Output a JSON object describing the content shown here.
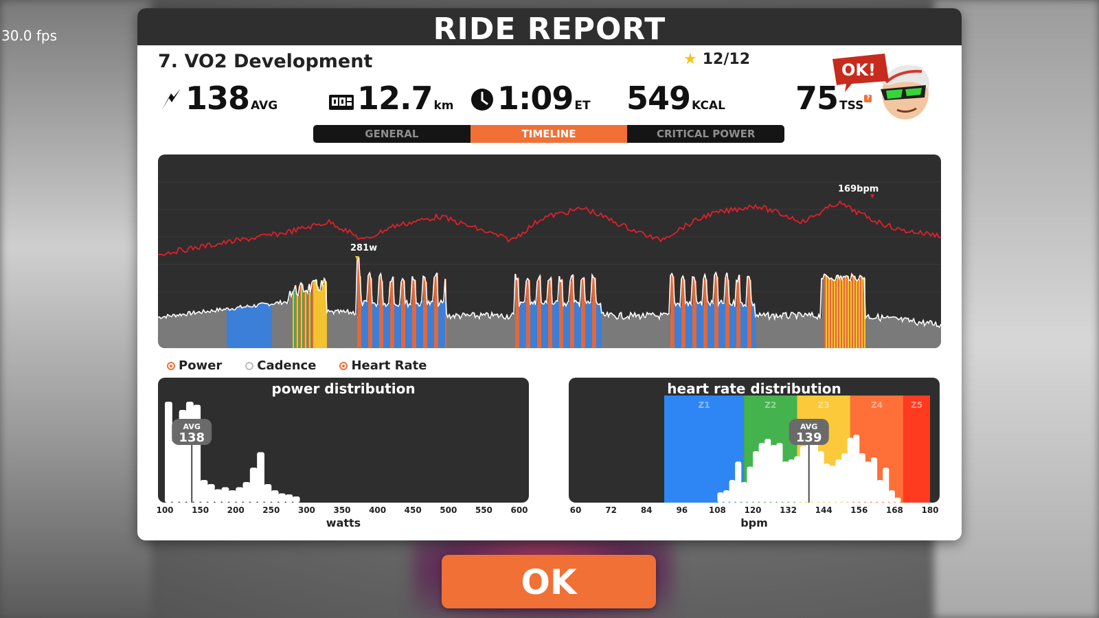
{
  "fps": "30.0 fps",
  "header": {
    "title": "RIDE REPORT"
  },
  "workout": {
    "name": "7. VO2 Development",
    "stars": "12/12"
  },
  "stats": {
    "power": {
      "value": "138",
      "unit": "AVG",
      "icon": "lightning-icon"
    },
    "distance": {
      "value": "12.7",
      "unit": "km",
      "icon": "odometer-icon"
    },
    "time": {
      "value": "1:09",
      "unit": "ET",
      "icon": "clock-icon"
    },
    "calories": {
      "value": "549",
      "unit": "KCAL"
    },
    "tss": {
      "value": "75",
      "unit": "TSS",
      "badge": "?"
    }
  },
  "mascot": {
    "bubble": "OK!"
  },
  "tabs": [
    {
      "label": "GENERAL",
      "active": false
    },
    {
      "label": "TIMELINE",
      "active": true
    },
    {
      "label": "CRITICAL POWER",
      "active": false
    }
  ],
  "timeline": {
    "power_peak_label": "281w",
    "hr_peak_label": "169bpm",
    "colors": {
      "power_line": "#ffffff",
      "hr_line": "#e0202a",
      "z1": "#3b7fd9",
      "z2": "#3cab4d",
      "z3": "#f2c230",
      "z4": "#e2683a",
      "z5": "#d8362b",
      "base": "#7a7a7a"
    }
  },
  "legend": [
    {
      "label": "Power",
      "on": true
    },
    {
      "label": "Cadence",
      "on": false
    },
    {
      "label": "Heart Rate",
      "on": true
    }
  ],
  "chart_data": [
    {
      "type": "bar",
      "title": "power distribution",
      "xlabel": "watts",
      "x_ticks": [
        "100",
        "150",
        "200",
        "250",
        "300",
        "350",
        "400",
        "450",
        "500",
        "550",
        "600"
      ],
      "xlim": [
        100,
        600
      ],
      "avg_label": "AVG",
      "avg": "138",
      "avg_value": 138,
      "x": [
        105,
        115,
        125,
        135,
        145,
        155,
        165,
        175,
        185,
        195,
        205,
        215,
        225,
        235,
        245,
        255,
        265,
        275,
        285
      ],
      "values": [
        0.98,
        0.6,
        0.9,
        0.98,
        0.95,
        0.22,
        0.18,
        0.13,
        0.15,
        0.12,
        0.15,
        0.2,
        0.34,
        0.49,
        0.18,
        0.12,
        0.09,
        0.08,
        0.06
      ]
    },
    {
      "type": "bar",
      "title": "heart rate distribution",
      "xlabel": "bpm",
      "x_ticks": [
        "60",
        "72",
        "84",
        "96",
        "108",
        "120",
        "132",
        "144",
        "156",
        "168",
        "180"
      ],
      "xlim": [
        60,
        180
      ],
      "zones": [
        "Z1",
        "Z2",
        "Z3",
        "Z4",
        "Z5"
      ],
      "zone_ranges": [
        [
          90,
          117
        ],
        [
          117,
          135
        ],
        [
          135,
          153
        ],
        [
          153,
          171
        ],
        [
          171,
          180
        ]
      ],
      "zone_colors": [
        "#2e86f5",
        "#44b24d",
        "#fcc93a",
        "#ff6f37",
        "#ff3b1f"
      ],
      "avg_label": "AVG",
      "avg": "139",
      "avg_value": 139,
      "x": [
        109,
        111,
        113,
        115,
        117,
        119,
        121,
        123,
        125,
        127,
        129,
        131,
        133,
        135,
        137,
        139,
        141,
        143,
        145,
        147,
        149,
        151,
        153,
        155,
        157,
        159,
        161,
        163,
        165,
        167,
        169
      ],
      "values": [
        0.1,
        0.12,
        0.22,
        0.4,
        0.2,
        0.35,
        0.5,
        0.58,
        0.62,
        0.56,
        0.58,
        0.4,
        0.42,
        0.45,
        0.55,
        0.6,
        0.7,
        0.5,
        0.38,
        0.36,
        0.42,
        0.48,
        0.63,
        0.66,
        0.48,
        0.4,
        0.44,
        0.22,
        0.34,
        0.12,
        0.05
      ]
    }
  ],
  "ok_button": {
    "label": "OK"
  }
}
